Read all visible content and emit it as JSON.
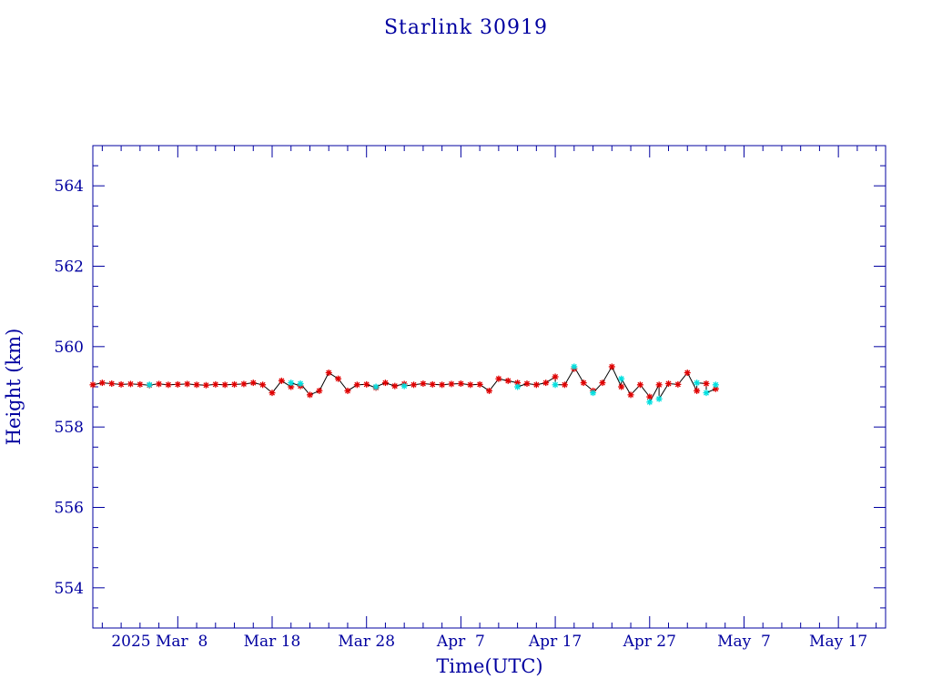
{
  "chart_data": {
    "type": "scatter",
    "title": "Starlink 30919",
    "xlabel": "Time(UTC)",
    "ylabel": "Height (km)",
    "ylim": [
      553.0,
      565.0
    ],
    "y_ticks": [
      554,
      556,
      558,
      560,
      562,
      564
    ],
    "x_tick_labels": [
      "2025 Mar  8",
      "Mar 18",
      "Mar 28",
      "Apr  7",
      "Apr 17",
      "Apr 27",
      "May  7",
      "May 17"
    ],
    "xlim": [
      "2025-02-27",
      "2025-05-22"
    ],
    "grid": false,
    "colors": {
      "axis": "#0000a0",
      "line": "#000000",
      "marker_primary": "#e00000",
      "marker_secondary": "#00e0e0"
    },
    "series": [
      {
        "values": [
          [
            "2025-02-27",
            559.05
          ],
          [
            "2025-02-28",
            559.1
          ],
          [
            "2025-03-01",
            559.08
          ],
          [
            "2025-03-02",
            559.06
          ],
          [
            "2025-03-03",
            559.07
          ],
          [
            "2025-03-04",
            559.06
          ],
          [
            "2025-03-05",
            559.04
          ],
          [
            "2025-03-06",
            559.07
          ],
          [
            "2025-03-07",
            559.05
          ],
          [
            "2025-03-08",
            559.06
          ],
          [
            "2025-03-09",
            559.07
          ],
          [
            "2025-03-10",
            559.05
          ],
          [
            "2025-03-11",
            559.04
          ],
          [
            "2025-03-12",
            559.06
          ],
          [
            "2025-03-13",
            559.05
          ],
          [
            "2025-03-14",
            559.06
          ],
          [
            "2025-03-15",
            559.07
          ],
          [
            "2025-03-16",
            559.1
          ],
          [
            "2025-03-17",
            559.05
          ],
          [
            "2025-03-18",
            558.85
          ],
          [
            "2025-03-19",
            559.15
          ],
          [
            "2025-03-20",
            559.0
          ],
          [
            "2025-03-21",
            559.02
          ],
          [
            "2025-03-22",
            558.8
          ],
          [
            "2025-03-23",
            558.9
          ],
          [
            "2025-03-24",
            559.35
          ],
          [
            "2025-03-25",
            559.2
          ],
          [
            "2025-03-26",
            558.9
          ],
          [
            "2025-03-27",
            559.05
          ],
          [
            "2025-03-28",
            559.06
          ],
          [
            "2025-03-29",
            558.98
          ],
          [
            "2025-03-30",
            559.1
          ],
          [
            "2025-03-31",
            559.02
          ],
          [
            "2025-04-01",
            559.07
          ],
          [
            "2025-04-02",
            559.05
          ],
          [
            "2025-04-03",
            559.08
          ],
          [
            "2025-04-04",
            559.06
          ],
          [
            "2025-04-05",
            559.05
          ],
          [
            "2025-04-06",
            559.07
          ],
          [
            "2025-04-07",
            559.08
          ],
          [
            "2025-04-08",
            559.05
          ],
          [
            "2025-04-09",
            559.06
          ],
          [
            "2025-04-10",
            558.9
          ],
          [
            "2025-04-11",
            559.2
          ],
          [
            "2025-04-12",
            559.15
          ],
          [
            "2025-04-13",
            559.1
          ],
          [
            "2025-04-14",
            559.08
          ],
          [
            "2025-04-15",
            559.05
          ],
          [
            "2025-04-16",
            559.1
          ],
          [
            "2025-04-17",
            559.25
          ],
          [
            "2025-04-18",
            559.05
          ],
          [
            "2025-04-19",
            559.45
          ],
          [
            "2025-04-20",
            559.1
          ],
          [
            "2025-04-21",
            558.9
          ],
          [
            "2025-04-22",
            559.1
          ],
          [
            "2025-04-23",
            559.5
          ],
          [
            "2025-04-24",
            559.0
          ],
          [
            "2025-04-25",
            558.8
          ],
          [
            "2025-04-26",
            559.05
          ],
          [
            "2025-04-27",
            558.75
          ],
          [
            "2025-04-28",
            559.05
          ],
          [
            "2025-04-29",
            559.08
          ],
          [
            "2025-04-30",
            559.06
          ],
          [
            "2025-05-01",
            559.35
          ],
          [
            "2025-05-02",
            558.9
          ],
          [
            "2025-05-03",
            559.08
          ],
          [
            "2025-05-04",
            558.95
          ]
        ]
      },
      {
        "values": [
          [
            "2025-03-05",
            559.05
          ],
          [
            "2025-03-20",
            559.1
          ],
          [
            "2025-03-21",
            559.08
          ],
          [
            "2025-03-29",
            559.0
          ],
          [
            "2025-04-01",
            559.02
          ],
          [
            "2025-04-13",
            559.0
          ],
          [
            "2025-04-17",
            559.05
          ],
          [
            "2025-04-19",
            559.5
          ],
          [
            "2025-04-21",
            558.85
          ],
          [
            "2025-04-24",
            559.2
          ],
          [
            "2025-04-27",
            558.62
          ],
          [
            "2025-04-28",
            558.7
          ],
          [
            "2025-05-02",
            559.1
          ],
          [
            "2025-05-03",
            558.85
          ],
          [
            "2025-05-04",
            559.05
          ]
        ]
      }
    ]
  }
}
